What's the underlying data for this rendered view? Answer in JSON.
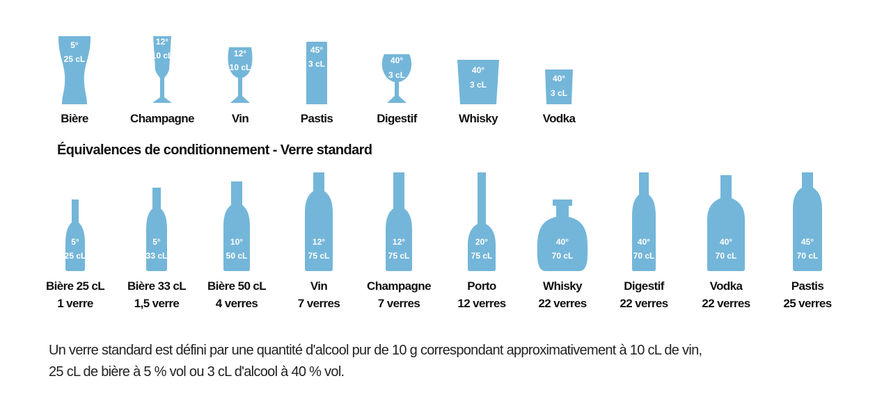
{
  "glasses": [
    {
      "label": "Bière",
      "degree": "5°",
      "volume": "25 cL"
    },
    {
      "label": "Champagne",
      "degree": "12°",
      "volume": "10 cL"
    },
    {
      "label": "Vin",
      "degree": "12°",
      "volume": "10 cL"
    },
    {
      "label": "Pastis",
      "degree": "45°",
      "volume": "3 cL"
    },
    {
      "label": "Digestif",
      "degree": "40°",
      "volume": "3 cL"
    },
    {
      "label": "Whisky",
      "degree": "40°",
      "volume": "3 cL"
    },
    {
      "label": "Vodka",
      "degree": "40°",
      "volume": "3 cL"
    }
  ],
  "section_title": "Équivalences de conditionnement - Verre standard",
  "bottles": [
    {
      "label": "Bière 25 cL",
      "degree": "5°",
      "volume": "25 cL",
      "equivalence": "1 verre"
    },
    {
      "label": "Bière 33 cL",
      "degree": "5°",
      "volume": "33 cL",
      "equivalence": "1,5 verre"
    },
    {
      "label": "Bière 50 cL",
      "degree": "10°",
      "volume": "50 cL",
      "equivalence": "4 verres"
    },
    {
      "label": "Vin",
      "degree": "12°",
      "volume": "75 cL",
      "equivalence": "7 verres"
    },
    {
      "label": "Champagne",
      "degree": "12°",
      "volume": "75 cL",
      "equivalence": "7 verres"
    },
    {
      "label": "Porto",
      "degree": "20°",
      "volume": "75 cL",
      "equivalence": "12 verres"
    },
    {
      "label": "Whisky",
      "degree": "40°",
      "volume": "70 cL",
      "equivalence": "22 verres"
    },
    {
      "label": "Digestif",
      "degree": "40°",
      "volume": "70 cL",
      "equivalence": "22 verres"
    },
    {
      "label": "Vodka",
      "degree": "40°",
      "volume": "70 cL",
      "equivalence": "22 verres"
    },
    {
      "label": "Pastis",
      "degree": "45°",
      "volume": "70 cL",
      "equivalence": "25 verres"
    }
  ],
  "footnote": [
    "Un verre standard est défini par une quantité d'alcool pur de 10 g correspondant approximativement à 10 cL de vin,",
    "25 cL de bière à 5 % vol ou 3 cL d'alcool à 40 % vol."
  ]
}
